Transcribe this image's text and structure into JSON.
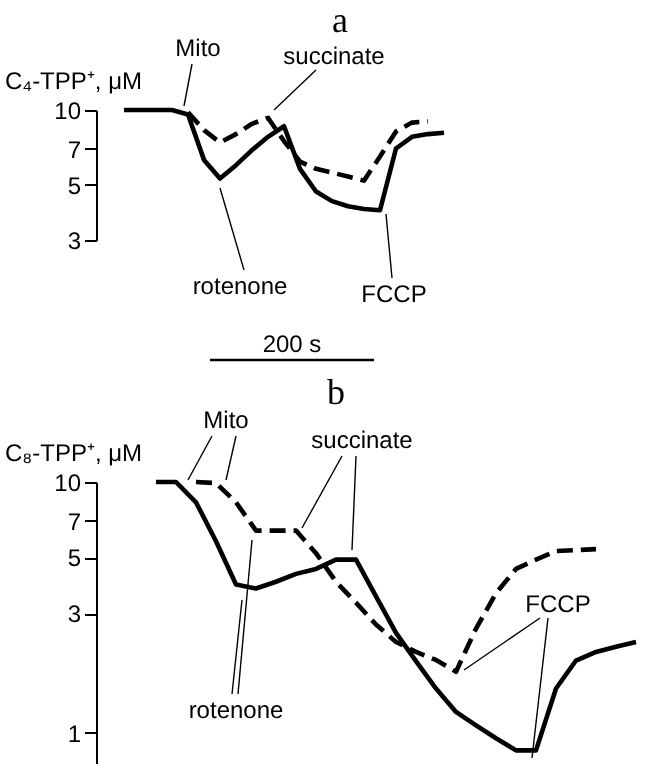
{
  "chart_data": [
    {
      "type": "line",
      "title": "a",
      "ylabel": "C₄-TPP⁺, μM",
      "log": "y",
      "tick_labels": "y",
      "categories": [
        null,
        null,
        null,
        null,
        null,
        null,
        null,
        null,
        null,
        null,
        null,
        null,
        null,
        null,
        null,
        null,
        null,
        null,
        null,
        null,
        null
      ],
      "ylim": [
        3,
        10
      ],
      "yticks": [
        3,
        5,
        7,
        10
      ],
      "series": [
        {
          "color": "#000000",
          "line_style": "solid",
          "values": [
            10,
            10,
            10,
            10,
            9.6,
            6.3,
            5.3,
            6.0,
            6.9,
            7.8,
            8.6,
            5.8,
            4.7,
            4.3,
            4.1,
            4.0,
            3.95,
            7.0,
            7.8,
            8.0,
            8.1
          ]
        },
        {
          "color": "#000000",
          "line_style": "dashed",
          "values": [
            null,
            null,
            null,
            null,
            9.8,
            8.3,
            7.4,
            8.0,
            8.8,
            9.3,
            7.5,
            6.2,
            5.8,
            5.6,
            5.4,
            5.2,
            6.5,
            8.2,
            8.9,
            9.0,
            null
          ]
        }
      ],
      "annotations": [
        "Mito",
        "succinate",
        "rotenone",
        "FCCP",
        "200 s"
      ]
    },
    {
      "type": "line",
      "title": "b",
      "ylabel": "C₈-TPP⁺, μM",
      "log": "y",
      "tick_labels": "y",
      "categories": [
        null,
        null,
        null,
        null,
        null,
        null,
        null,
        null,
        null,
        null,
        null,
        null,
        null,
        null,
        null,
        null,
        null,
        null,
        null,
        null,
        null,
        null,
        null,
        null,
        null,
        null
      ],
      "ylim": [
        0.75,
        10
      ],
      "yticks": [
        1,
        3,
        5,
        7,
        10
      ],
      "series": [
        {
          "color": "#000000",
          "line_style": "solid",
          "values": [
            10,
            10,
            8.3,
            5.8,
            3.9,
            3.76,
            4.0,
            4.3,
            4.5,
            4.9,
            4.9,
            3.5,
            2.5,
            1.93,
            1.5,
            1.21,
            1.07,
            0.95,
            0.85,
            0.85,
            1.5,
            1.94,
            2.1,
            2.2,
            2.3,
            null
          ]
        },
        {
          "color": "#000000",
          "line_style": "dashed",
          "values": [
            null,
            null,
            10,
            9.9,
            8.3,
            6.4,
            6.4,
            6.4,
            5.2,
            4.0,
            3.3,
            2.7,
            2.3,
            2.1,
            1.95,
            1.75,
            2.6,
            3.6,
            4.5,
            4.9,
            5.3,
            5.35,
            5.4,
            null,
            null,
            null
          ]
        }
      ],
      "annotations": [
        "Mito",
        "succinate",
        "rotenone",
        "FCCP"
      ]
    }
  ]
}
